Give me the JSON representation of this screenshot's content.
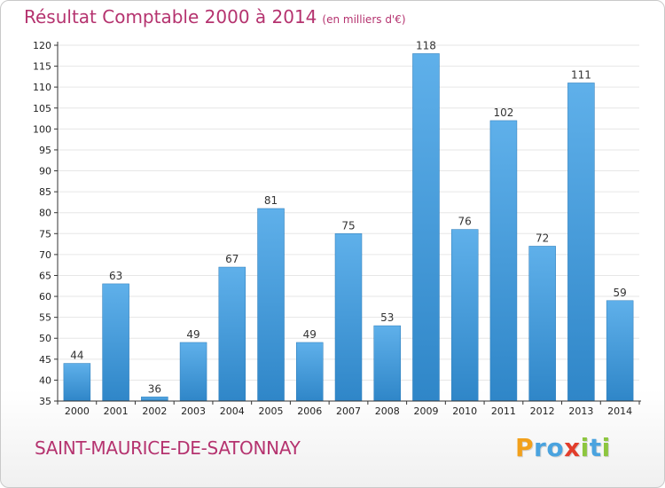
{
  "header": {
    "title": "Résultat Comptable 2000 à 2014",
    "subtitle": "(en milliers d'€)"
  },
  "footer": {
    "commune": "SAINT-MAURICE-DE-SATONNAY",
    "logo_letters": [
      {
        "char": "P",
        "color": "#f2a01b"
      },
      {
        "char": "r",
        "color": "#4aa3df"
      },
      {
        "char": "o",
        "color": "#4aa3df"
      },
      {
        "char": "x",
        "color": "#e23d2b"
      },
      {
        "char": "i",
        "color": "#8dc63f"
      },
      {
        "char": "t",
        "color": "#4aa3df"
      },
      {
        "char": "i",
        "color": "#8dc63f"
      }
    ]
  },
  "colors": {
    "title": "#b5336f",
    "bar_top": "#5fb0ea",
    "bar_bottom": "#2f86c8",
    "grid": "#e6e6e6",
    "axis": "#333333"
  },
  "chart_data": {
    "type": "bar",
    "categories": [
      "2000",
      "2001",
      "2002",
      "2003",
      "2004",
      "2005",
      "2006",
      "2007",
      "2008",
      "2009",
      "2010",
      "2011",
      "2012",
      "2013",
      "2014"
    ],
    "values": [
      44,
      63,
      36,
      49,
      67,
      81,
      49,
      75,
      53,
      118,
      76,
      102,
      72,
      111,
      59
    ],
    "title": "Résultat Comptable 2000 à 2014",
    "subtitle": "(en milliers d'€)",
    "xlabel": "",
    "ylabel": "",
    "ylim": [
      35,
      120
    ],
    "yticks": [
      35,
      40,
      45,
      50,
      55,
      60,
      65,
      70,
      75,
      80,
      85,
      90,
      95,
      100,
      105,
      110,
      115,
      120
    ],
    "grid": true
  }
}
